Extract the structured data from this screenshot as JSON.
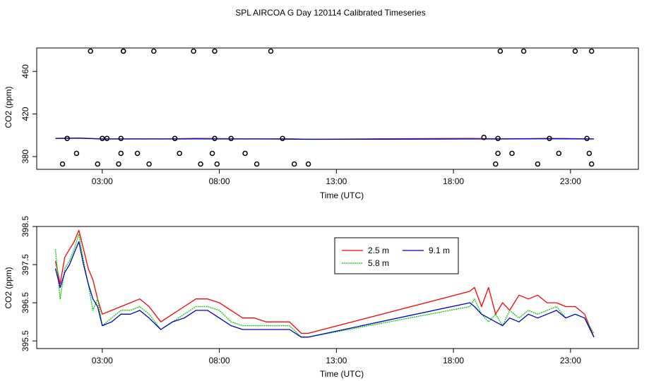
{
  "title": "SPL AIRCOA G  Day 120114  Calibrated Timeseries",
  "colors": {
    "s25": "#ff0000",
    "s58": "#00cc00",
    "s91": "#0000cc",
    "axis": "#000000"
  },
  "chart_data": [
    {
      "type": "scatter+line",
      "xlabel": "Time (UTC)",
      "ylabel": "CO2 (ppm)",
      "xlim": [
        0.2,
        25.9
      ],
      "ylim": [
        368,
        482
      ],
      "xticks": [
        3,
        8,
        13,
        18,
        23
      ],
      "xtick_labels": [
        "03:00",
        "08:00",
        "13:00",
        "18:00",
        "23:00"
      ],
      "yticks": [
        380,
        420,
        460
      ],
      "ytick_labels": [
        "380",
        "420",
        "460"
      ],
      "points": {
        "x": [
          1.3,
          1.5,
          1.9,
          2.5,
          2.8,
          3.0,
          3.2,
          3.7,
          3.8,
          3.8,
          3.9,
          3.9,
          4.5,
          5.0,
          5.2,
          6.1,
          6.3,
          6.9,
          7.2,
          7.7,
          7.8,
          7.8,
          7.9,
          8.5,
          9.1,
          9.6,
          10.2,
          10.7,
          11.2,
          11.8,
          19.3,
          19.8,
          19.9,
          19.9,
          20.0,
          20.5,
          21.0,
          21.6,
          22.1,
          22.5,
          23.2,
          23.7,
          23.8,
          23.9,
          23.9
        ],
        "y": [
          373,
          397,
          383,
          479,
          373,
          397,
          397,
          373,
          383,
          397,
          479,
          479,
          383,
          373,
          479,
          397,
          383,
          479,
          373,
          383,
          479,
          397,
          373,
          397,
          383,
          373,
          479,
          397,
          373,
          373,
          398,
          373,
          383,
          397,
          479,
          383,
          479,
          373,
          397,
          383,
          479,
          397,
          383,
          479,
          373
        ]
      },
      "series": [
        {
          "name": "2.5 m",
          "x": [
            1.0,
            2.0,
            3.0,
            4.0,
            5.0,
            6.0,
            7.0,
            8.0,
            9.0,
            10.0,
            11.0,
            11.8,
            15.0,
            18.7,
            19.5,
            20.0,
            21.0,
            22.0,
            23.0,
            24.0
          ],
          "y": [
            397.0,
            397.5,
            396.6,
            396.7,
            396.7,
            396.7,
            397.0,
            396.9,
            396.7,
            396.7,
            396.6,
            396.3,
            396.7,
            397.0,
            396.8,
            396.8,
            396.8,
            397.0,
            396.9,
            396.6
          ]
        },
        {
          "name": "5.8 m",
          "x": [
            1.0,
            2.0,
            3.0,
            4.0,
            5.0,
            6.0,
            7.0,
            8.0,
            9.0,
            10.0,
            11.0,
            11.8,
            15.0,
            18.7,
            19.5,
            20.0,
            21.0,
            22.0,
            23.0,
            24.0
          ],
          "y": [
            397.0,
            397.3,
            396.6,
            396.6,
            396.6,
            396.6,
            396.7,
            396.7,
            396.6,
            396.6,
            396.5,
            396.3,
            396.4,
            396.6,
            396.6,
            396.6,
            396.7,
            396.8,
            396.7,
            396.6
          ]
        },
        {
          "name": "9.1 m",
          "x": [
            1.0,
            2.0,
            3.0,
            4.0,
            5.0,
            6.0,
            7.0,
            8.0,
            9.0,
            10.0,
            11.0,
            11.8,
            15.0,
            18.7,
            19.5,
            20.0,
            21.0,
            22.0,
            23.0,
            24.0
          ],
          "y": [
            397.0,
            397.2,
            396.5,
            396.5,
            396.5,
            396.5,
            396.6,
            396.5,
            396.5,
            396.5,
            396.4,
            396.2,
            396.3,
            396.5,
            396.5,
            396.5,
            396.6,
            396.7,
            396.6,
            396.5
          ]
        }
      ]
    },
    {
      "type": "line",
      "xlabel": "Time (UTC)",
      "ylabel": "CO2 (ppm)",
      "xlim": [
        0.2,
        25.9
      ],
      "ylim": [
        395.3,
        398.5
      ],
      "xticks": [
        3,
        8,
        13,
        18,
        23
      ],
      "xtick_labels": [
        "03:00",
        "08:00",
        "13:00",
        "18:00",
        "23:00"
      ],
      "yticks": [
        395.5,
        396.5,
        397.5,
        398.5
      ],
      "ytick_labels": [
        "395.5",
        "396.5",
        "397.5",
        "398.5"
      ],
      "legend": {
        "position": "top-center",
        "entries": [
          "2.5 m",
          "9.1 m",
          "5.8 m"
        ]
      },
      "series": [
        {
          "name": "2.5 m",
          "x": [
            1.0,
            1.2,
            1.4,
            1.6,
            1.8,
            2.0,
            2.2,
            2.4,
            2.6,
            2.8,
            3.0,
            3.4,
            3.8,
            4.2,
            4.6,
            5.0,
            5.5,
            6.0,
            6.5,
            7.0,
            7.5,
            8.0,
            8.5,
            9.0,
            9.5,
            10.0,
            10.5,
            11.0,
            11.5,
            11.8,
            18.7,
            18.9,
            19.2,
            19.5,
            19.8,
            20.1,
            20.4,
            20.8,
            21.2,
            21.6,
            22.0,
            22.4,
            22.8,
            23.2,
            23.6,
            24.0
          ],
          "y": [
            397.6,
            397.0,
            397.7,
            397.9,
            398.1,
            398.4,
            397.9,
            397.4,
            397.1,
            396.6,
            396.2,
            396.3,
            396.4,
            396.5,
            396.6,
            396.4,
            396.0,
            396.2,
            396.4,
            396.6,
            396.6,
            396.5,
            396.3,
            396.1,
            396.1,
            396.0,
            396.0,
            396.0,
            395.7,
            395.7,
            396.8,
            396.9,
            396.4,
            396.9,
            396.2,
            396.5,
            396.3,
            396.7,
            396.6,
            396.7,
            396.5,
            396.5,
            396.4,
            396.4,
            396.2,
            395.6
          ]
        },
        {
          "name": "5.8 m",
          "x": [
            1.0,
            1.2,
            1.4,
            1.6,
            1.8,
            2.0,
            2.2,
            2.4,
            2.6,
            2.8,
            3.0,
            3.4,
            3.8,
            4.2,
            4.6,
            5.0,
            5.5,
            6.0,
            6.5,
            7.0,
            7.5,
            8.0,
            8.5,
            9.0,
            9.5,
            10.0,
            10.5,
            11.0,
            11.5,
            11.8,
            18.7,
            18.9,
            19.2,
            19.5,
            19.8,
            20.1,
            20.4,
            20.8,
            21.2,
            21.6,
            22.0,
            22.4,
            22.8,
            23.2,
            23.6,
            24.0
          ],
          "y": [
            397.9,
            396.6,
            397.4,
            397.6,
            397.9,
            398.3,
            397.6,
            397.0,
            396.3,
            396.6,
            395.9,
            396.1,
            396.3,
            396.3,
            396.4,
            396.2,
            395.8,
            396.0,
            396.2,
            396.4,
            396.4,
            396.3,
            396.0,
            395.9,
            395.9,
            395.9,
            395.9,
            395.9,
            395.6,
            395.6,
            396.4,
            396.6,
            396.2,
            396.0,
            396.2,
            395.9,
            396.3,
            396.1,
            396.3,
            396.2,
            396.3,
            396.4,
            396.1,
            396.2,
            396.1,
            395.7
          ]
        },
        {
          "name": "9.1 m",
          "x": [
            1.0,
            1.2,
            1.4,
            1.6,
            1.8,
            2.0,
            2.2,
            2.4,
            2.6,
            2.8,
            3.0,
            3.4,
            3.8,
            4.2,
            4.6,
            5.0,
            5.5,
            6.0,
            6.5,
            7.0,
            7.5,
            8.0,
            8.5,
            9.0,
            9.5,
            10.0,
            10.5,
            11.0,
            11.5,
            11.8,
            18.7,
            18.9,
            19.2,
            19.5,
            19.8,
            20.1,
            20.4,
            20.8,
            21.2,
            21.6,
            22.0,
            22.4,
            22.8,
            23.2,
            23.6,
            24.0
          ],
          "y": [
            397.4,
            396.9,
            397.3,
            397.5,
            397.8,
            398.1,
            397.5,
            397.0,
            396.6,
            396.4,
            395.9,
            396.0,
            396.2,
            396.2,
            396.3,
            396.1,
            395.8,
            396.0,
            396.1,
            396.3,
            396.3,
            396.1,
            395.9,
            395.8,
            395.8,
            395.8,
            395.8,
            395.8,
            395.6,
            395.6,
            396.5,
            396.4,
            396.2,
            396.1,
            396.0,
            395.9,
            396.1,
            396.0,
            396.2,
            396.1,
            396.2,
            396.3,
            396.1,
            396.2,
            396.1,
            395.6
          ]
        }
      ]
    }
  ]
}
